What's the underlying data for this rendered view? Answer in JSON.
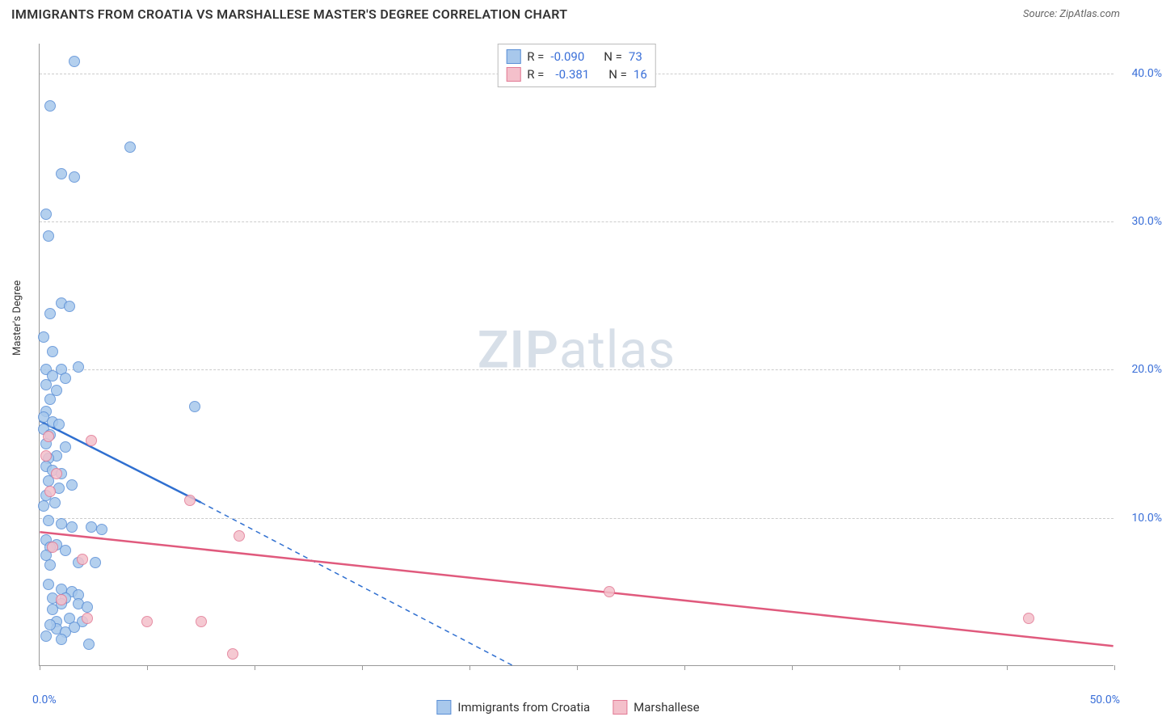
{
  "header": {
    "title": "IMMIGRANTS FROM CROATIA VS MARSHALLESE MASTER'S DEGREE CORRELATION CHART",
    "source": "Source: ZipAtlas.com"
  },
  "ylabel": "Master's Degree",
  "watermark": {
    "prefix": "ZIP",
    "suffix": "atlas"
  },
  "chart": {
    "type": "scatter",
    "xlim": [
      0,
      50
    ],
    "ylim": [
      0,
      42
    ],
    "xticks": [
      0,
      5,
      10,
      15,
      20,
      25,
      30,
      35,
      40,
      45,
      50
    ],
    "xtick_labels_shown": {
      "0": "0.0%",
      "50": "50.0%"
    },
    "yticks": [
      10,
      20,
      30,
      40
    ],
    "ytick_labels": [
      "10.0%",
      "20.0%",
      "30.0%",
      "40.0%"
    ],
    "grid_color": "#cccccc",
    "axis_color": "#999999",
    "background": "#ffffff",
    "marker_radius": 7,
    "marker_stroke_width": 1.2
  },
  "series": [
    {
      "name": "Immigrants from Croatia",
      "fill": "#a8c8ec",
      "stroke": "#5a8fd6",
      "line_color": "#2f6fd0",
      "r_label": "R =",
      "r_value": "-0.090",
      "n_label": "N =",
      "n_value": "73",
      "trend": {
        "x1": 0,
        "y1": 16.5,
        "x2": 7.5,
        "y2": 11.0,
        "dash_to_x": 22.0,
        "dash_to_y": 0
      },
      "points": [
        [
          1.6,
          40.8
        ],
        [
          0.5,
          37.8
        ],
        [
          4.2,
          35.0
        ],
        [
          1.0,
          33.2
        ],
        [
          1.6,
          33.0
        ],
        [
          0.3,
          30.5
        ],
        [
          0.4,
          29.0
        ],
        [
          1.0,
          24.5
        ],
        [
          1.4,
          24.3
        ],
        [
          0.5,
          23.8
        ],
        [
          0.2,
          22.2
        ],
        [
          0.6,
          21.2
        ],
        [
          1.8,
          20.2
        ],
        [
          1.0,
          20.0
        ],
        [
          0.3,
          20.0
        ],
        [
          0.6,
          19.6
        ],
        [
          1.2,
          19.4
        ],
        [
          0.3,
          19.0
        ],
        [
          0.8,
          18.6
        ],
        [
          0.5,
          18.0
        ],
        [
          7.2,
          17.5
        ],
        [
          0.3,
          17.2
        ],
        [
          0.2,
          16.8
        ],
        [
          0.6,
          16.5
        ],
        [
          0.9,
          16.3
        ],
        [
          0.2,
          16.0
        ],
        [
          0.5,
          15.6
        ],
        [
          0.3,
          15.0
        ],
        [
          1.2,
          14.8
        ],
        [
          0.8,
          14.2
        ],
        [
          0.4,
          14.0
        ],
        [
          0.3,
          13.5
        ],
        [
          0.6,
          13.2
        ],
        [
          1.0,
          13.0
        ],
        [
          0.4,
          12.5
        ],
        [
          1.5,
          12.2
        ],
        [
          0.9,
          12.0
        ],
        [
          0.3,
          11.5
        ],
        [
          0.7,
          11.0
        ],
        [
          0.2,
          10.8
        ],
        [
          0.4,
          9.8
        ],
        [
          1.0,
          9.6
        ],
        [
          1.5,
          9.4
        ],
        [
          2.4,
          9.4
        ],
        [
          2.9,
          9.2
        ],
        [
          0.3,
          8.5
        ],
        [
          0.8,
          8.2
        ],
        [
          0.5,
          8.0
        ],
        [
          1.2,
          7.8
        ],
        [
          0.3,
          7.5
        ],
        [
          1.8,
          7.0
        ],
        [
          2.6,
          7.0
        ],
        [
          0.5,
          6.8
        ],
        [
          0.4,
          5.5
        ],
        [
          1.0,
          5.2
        ],
        [
          1.5,
          5.0
        ],
        [
          1.8,
          4.8
        ],
        [
          1.2,
          4.6
        ],
        [
          0.6,
          4.6
        ],
        [
          1.8,
          4.2
        ],
        [
          2.2,
          4.0
        ],
        [
          1.0,
          4.2
        ],
        [
          0.6,
          3.8
        ],
        [
          1.4,
          3.2
        ],
        [
          2.0,
          3.0
        ],
        [
          0.8,
          3.0
        ],
        [
          2.3,
          1.5
        ],
        [
          0.8,
          2.5
        ],
        [
          1.2,
          2.3
        ],
        [
          1.6,
          2.6
        ],
        [
          0.5,
          2.8
        ],
        [
          0.3,
          2.0
        ],
        [
          1.0,
          1.8
        ]
      ]
    },
    {
      "name": "Marshallese",
      "fill": "#f4c0cb",
      "stroke": "#e27a95",
      "line_color": "#e05a7d",
      "r_label": "R =",
      "r_value": "-0.381",
      "n_label": "N =",
      "n_value": "16",
      "trend": {
        "x1": 0,
        "y1": 9.0,
        "x2": 50,
        "y2": 1.3
      },
      "points": [
        [
          0.4,
          15.5
        ],
        [
          2.4,
          15.2
        ],
        [
          0.3,
          14.2
        ],
        [
          0.8,
          13.0
        ],
        [
          0.5,
          11.8
        ],
        [
          7.0,
          11.2
        ],
        [
          9.3,
          8.8
        ],
        [
          2.0,
          7.2
        ],
        [
          26.5,
          5.0
        ],
        [
          2.2,
          3.2
        ],
        [
          5.0,
          3.0
        ],
        [
          7.5,
          3.0
        ],
        [
          46.0,
          3.2
        ],
        [
          9.0,
          0.8
        ],
        [
          1.0,
          4.5
        ],
        [
          0.6,
          8.0
        ]
      ]
    }
  ],
  "legend_bottom": [
    {
      "label": "Immigrants from Croatia",
      "fill": "#a8c8ec",
      "stroke": "#5a8fd6"
    },
    {
      "label": "Marshallese",
      "fill": "#f4c0cb",
      "stroke": "#e27a95"
    }
  ]
}
